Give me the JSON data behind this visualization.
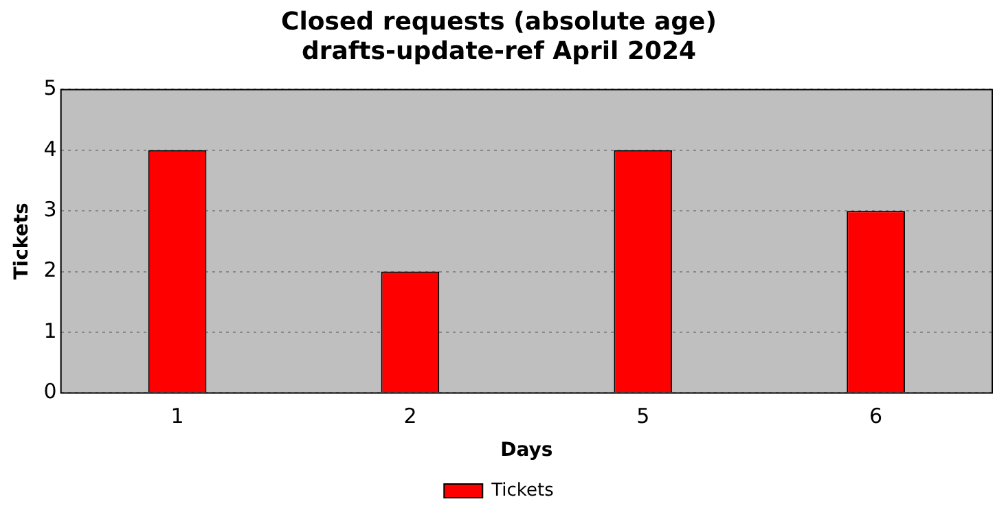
{
  "chart_data": {
    "type": "bar",
    "title": "Closed requests (absolute age)\ndrafts-update-ref April 2024",
    "xlabel": "Days",
    "ylabel": "Tickets",
    "categories": [
      "1",
      "2",
      "5",
      "6"
    ],
    "series": [
      {
        "name": "Tickets",
        "color": "#ff0000",
        "values": [
          4,
          2,
          4,
          3
        ]
      }
    ],
    "ylim": [
      0,
      5
    ],
    "yticks": [
      0,
      1,
      2,
      3,
      4,
      5
    ],
    "grid": "y",
    "legend": "bottom"
  }
}
